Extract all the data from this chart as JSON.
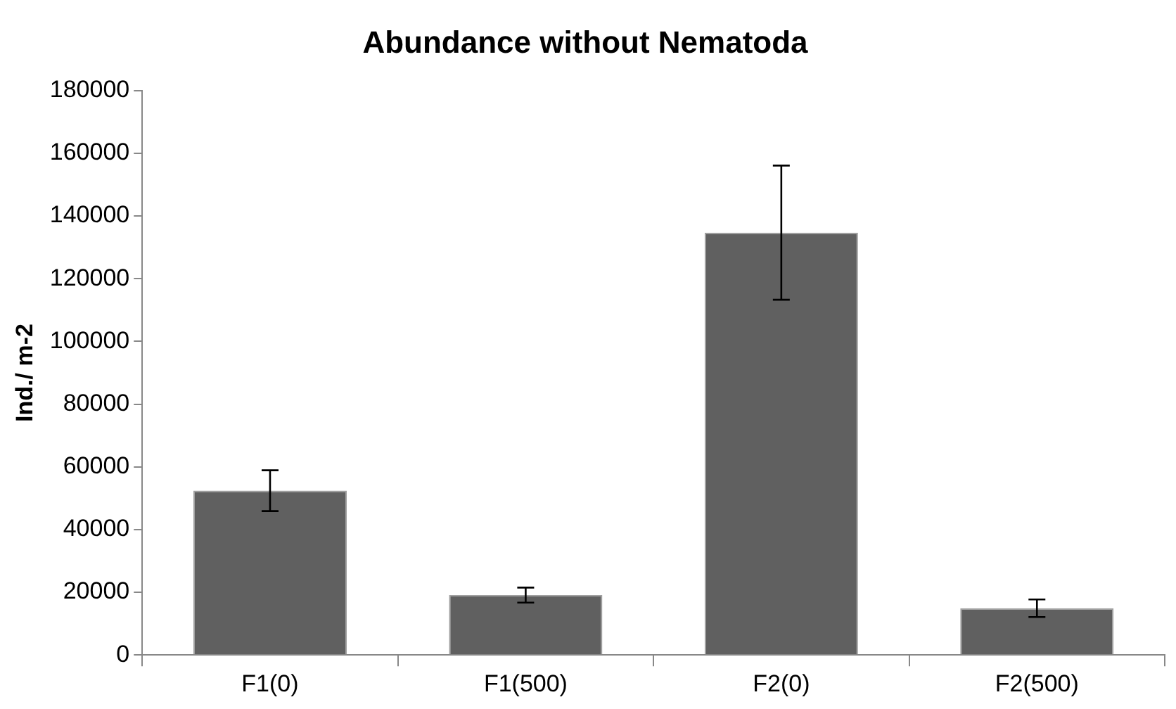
{
  "chart_data": {
    "type": "bar",
    "title": "Abundance without Nematoda",
    "ylabel": "Ind./ m-2",
    "categories": [
      "F1(0)",
      "F1(500)",
      "F2(0)",
      "F2(500)"
    ],
    "series": [
      {
        "color": "#606060",
        "values": [
          52400,
          19100,
          134700,
          14900
        ],
        "errors": [
          6500,
          2400,
          21400,
          2800
        ]
      }
    ],
    "ylim": [
      0,
      180000
    ],
    "yticks": [
      0,
      20000,
      40000,
      60000,
      80000,
      100000,
      120000,
      140000,
      160000,
      180000
    ],
    "grid": false,
    "legend": false
  }
}
